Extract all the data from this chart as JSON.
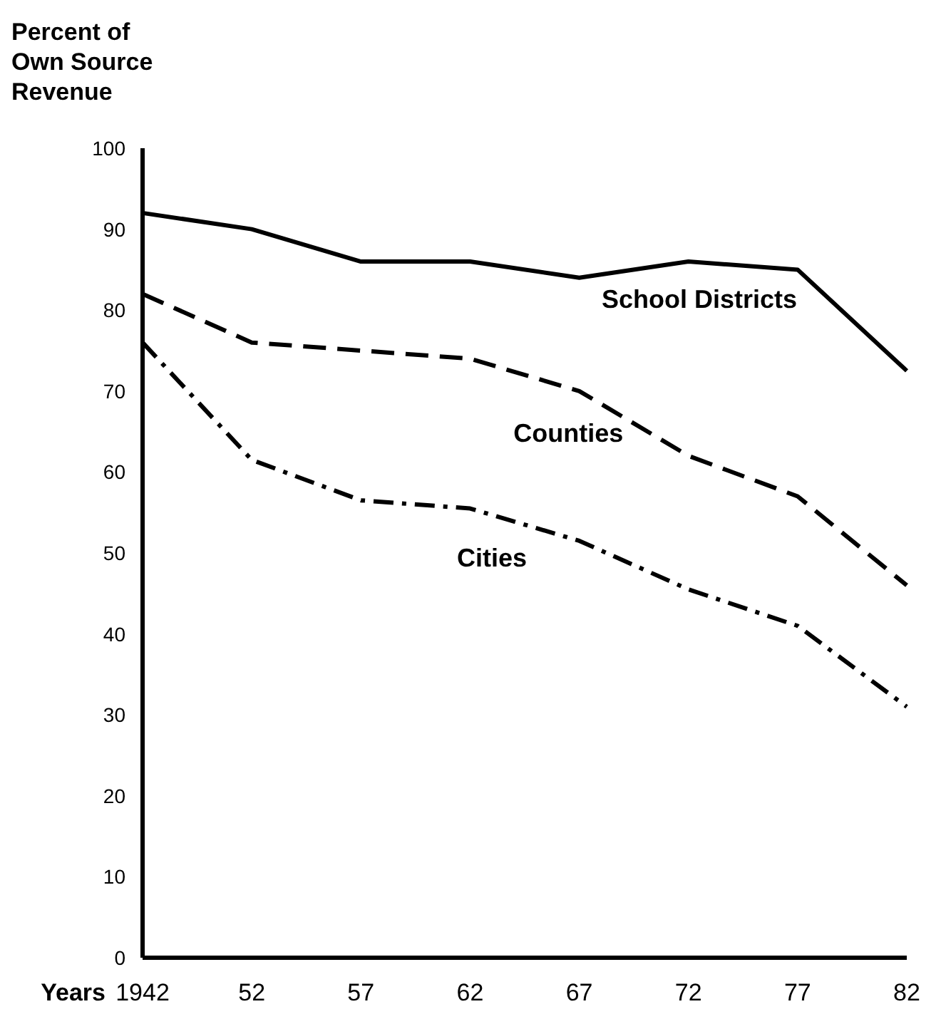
{
  "chart_data": {
    "type": "line",
    "ylabel": "Percent of Own Source Revenue",
    "xlabel": "Years",
    "categories": [
      "1942",
      "52",
      "57",
      "62",
      "67",
      "72",
      "77",
      "82"
    ],
    "ylim": [
      0,
      100
    ],
    "yticks": [
      0,
      10,
      20,
      30,
      40,
      50,
      60,
      70,
      80,
      90,
      100
    ],
    "grid": false,
    "legend": false,
    "series": [
      {
        "name": "School Districts",
        "color": "#000000",
        "line_style": "solid",
        "values": [
          92,
          90,
          86,
          86,
          84,
          86,
          85,
          72.5
        ]
      },
      {
        "name": "Counties",
        "color": "#000000",
        "line_style": "dashed",
        "values": [
          82,
          76,
          75,
          74,
          70,
          62,
          57,
          46
        ]
      },
      {
        "name": "Cities",
        "color": "#000000",
        "line_style": "dotted",
        "values": [
          76,
          61.5,
          56.5,
          55.5,
          51.5,
          45.5,
          41,
          31
        ]
      }
    ]
  }
}
